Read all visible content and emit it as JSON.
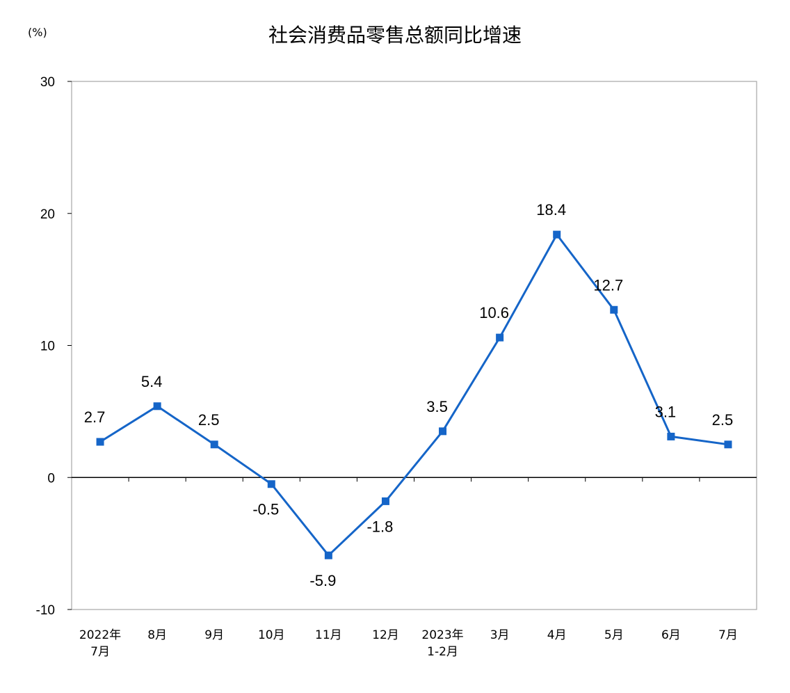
{
  "chart_data": {
    "type": "line",
    "title": "社会消费品零售总额同比增速",
    "ylabel": "(%)",
    "ylim": [
      -10,
      30
    ],
    "yticks": [
      -10,
      0,
      10,
      20,
      30
    ],
    "grid": false,
    "legend": "none",
    "categories": [
      [
        "2022年",
        "7月"
      ],
      [
        "8月"
      ],
      [
        "9月"
      ],
      [
        "10月"
      ],
      [
        "11月"
      ],
      [
        "12月"
      ],
      [
        "2023年",
        "1-2月"
      ],
      [
        "3月"
      ],
      [
        "4月"
      ],
      [
        "5月"
      ],
      [
        "6月"
      ],
      [
        "7月"
      ]
    ],
    "series": [
      {
        "values": [
          2.7,
          5.4,
          2.5,
          -0.5,
          -5.9,
          -1.8,
          3.5,
          10.6,
          18.4,
          12.7,
          3.1,
          2.5
        ],
        "labels": [
          "2.7",
          "5.4",
          "2.5",
          "-0.5",
          "-5.9",
          "-1.8",
          "3.5",
          "10.6",
          "18.4",
          "12.7",
          "3.1",
          "2.5"
        ],
        "color": "#1565c8"
      }
    ]
  }
}
